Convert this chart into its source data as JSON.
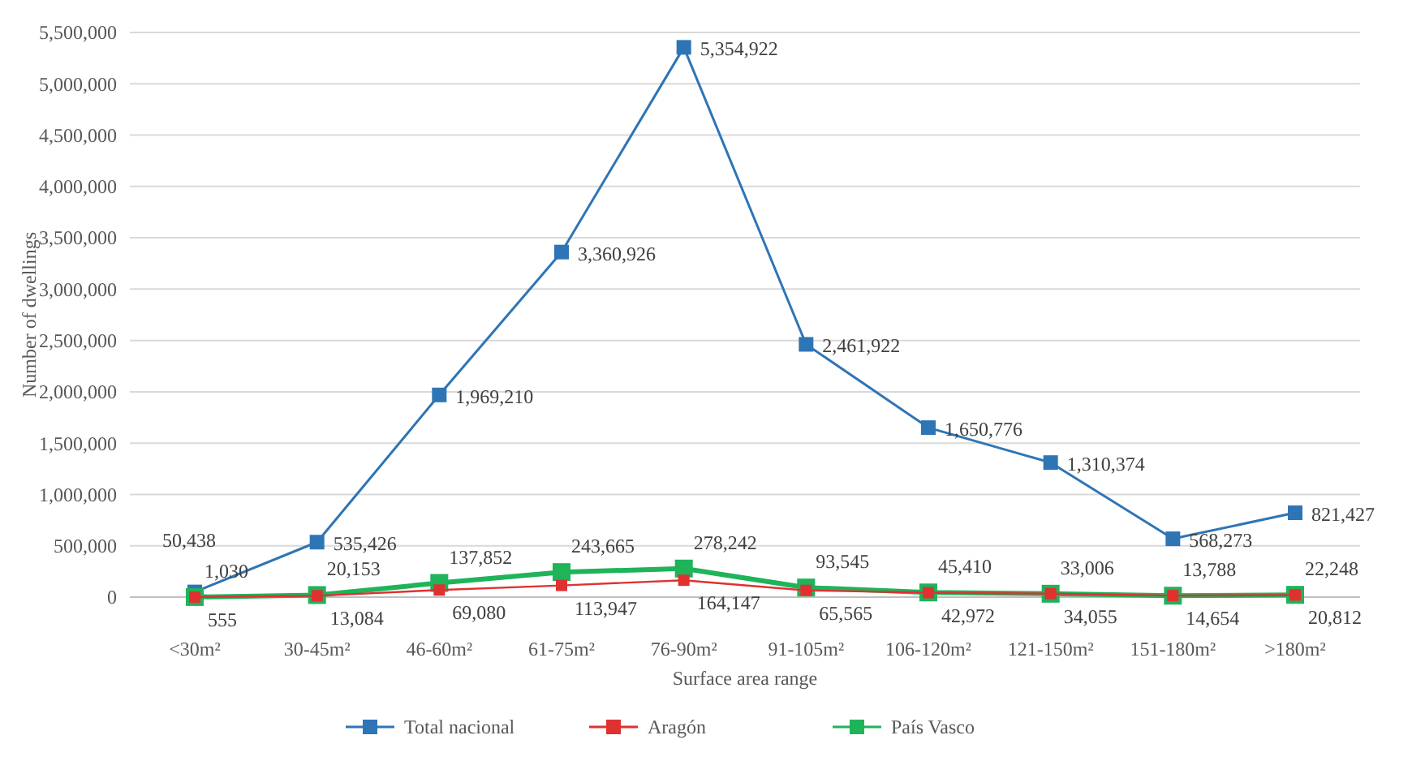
{
  "chart_data": {
    "type": "line",
    "xlabel": "Surface area range",
    "ylabel": "Number of dwellings",
    "categories": [
      "<30m²",
      "30-45m²",
      "46-60m²",
      "61-75m²",
      "76-90m²",
      "91-105m²",
      "106-120m²",
      "121-150m²",
      "151-180m²",
      ">180m²"
    ],
    "series": [
      {
        "name": "Total nacional",
        "color": "#2e75b6",
        "values": [
          50438,
          535426,
          1969210,
          3360926,
          5354922,
          2461922,
          1650776,
          1310374,
          568273,
          821427
        ],
        "value_labels": [
          "50,438",
          "535,426",
          "1,969,210",
          "3,360,926",
          "5,354,922",
          "2,461,922",
          "1,650,776",
          "1,310,374",
          "568,273",
          "821,427"
        ]
      },
      {
        "name": "Aragón",
        "color": "#e03131",
        "values": [
          555,
          13084,
          69080,
          113947,
          164147,
          65565,
          42972,
          34055,
          14654,
          20812
        ],
        "value_labels": [
          "555",
          "13,084",
          "69,080",
          "113,947",
          "164,147",
          "65,565",
          "42,972",
          "34,055",
          "14,654",
          "20,812"
        ]
      },
      {
        "name": "País Vasco",
        "color": "#1fb35a",
        "values": [
          1030,
          20153,
          137852,
          243665,
          278242,
          93545,
          45410,
          33006,
          13788,
          22248
        ],
        "value_labels": [
          "1,030",
          "20,153",
          "137,852",
          "243,665",
          "278,242",
          "93,545",
          "45,410",
          "33,006",
          "13,788",
          "22,248"
        ]
      }
    ],
    "ylim": [
      0,
      5500000
    ],
    "yticks": [
      {
        "value": 0,
        "label": "0"
      },
      {
        "value": 500000,
        "label": "500,000"
      },
      {
        "value": 1000000,
        "label": "1,000,000"
      },
      {
        "value": 1500000,
        "label": "1,500,000"
      },
      {
        "value": 2000000,
        "label": "2,000,000"
      },
      {
        "value": 2500000,
        "label": "2,500,000"
      },
      {
        "value": 3000000,
        "label": "3,000,000"
      },
      {
        "value": 3500000,
        "label": "3,500,000"
      },
      {
        "value": 4000000,
        "label": "4,000,000"
      },
      {
        "value": 4500000,
        "label": "4,500,000"
      },
      {
        "value": 5000000,
        "label": "5,000,000"
      },
      {
        "value": 5500000,
        "label": "5,500,000"
      }
    ],
    "grid": "y",
    "legend": "bottom",
    "marker": "square",
    "line_style": "solid"
  }
}
